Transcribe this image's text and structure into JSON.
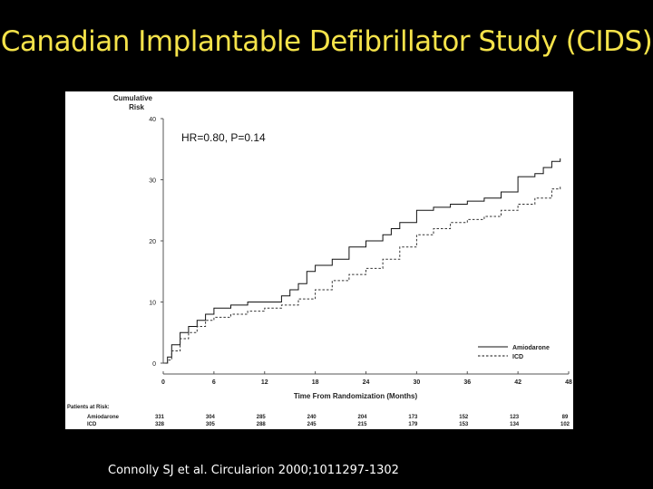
{
  "slide": {
    "title": "Canadian Implantable Defibrillator Study (CIDS)",
    "citation": "Connolly SJ et al. Circularion 2000;1011297-1302"
  },
  "chart_data": {
    "type": "line",
    "annotation": "HR=0.80, P=0.14",
    "ylabel": "Cumulative Risk",
    "xlabel": "Time From Randomization (Months)",
    "xlim": [
      0,
      48
    ],
    "ylim": [
      0,
      40
    ],
    "x_ticks": [
      0,
      6,
      12,
      18,
      24,
      30,
      36,
      42,
      48
    ],
    "y_ticks": [
      0,
      10,
      20,
      30,
      40
    ],
    "legend_position": "bottom-right",
    "series": [
      {
        "name": "Amiodarone",
        "style": "solid",
        "x": [
          0,
          0.5,
          1,
          2,
          3,
          4,
          5,
          6,
          8,
          10,
          12,
          14,
          15,
          16,
          17,
          18,
          20,
          22,
          24,
          26,
          27,
          28,
          30,
          32,
          34,
          36,
          38,
          40,
          42,
          44,
          45,
          46,
          47
        ],
        "y": [
          0,
          1,
          3,
          5,
          6,
          7,
          8,
          9,
          9.5,
          10,
          10,
          11,
          12,
          13,
          15,
          16,
          17,
          19,
          20,
          21,
          22,
          23,
          25,
          25.5,
          26,
          26.5,
          27,
          28,
          30.5,
          31,
          32,
          33,
          33.5
        ]
      },
      {
        "name": "ICD",
        "style": "dashed",
        "x": [
          0,
          0.5,
          1,
          2,
          3,
          4,
          5,
          6,
          8,
          10,
          12,
          14,
          16,
          18,
          20,
          22,
          24,
          26,
          28,
          30,
          32,
          34,
          36,
          38,
          40,
          42,
          44,
          46,
          47
        ],
        "y": [
          0,
          0.5,
          2,
          4,
          5,
          6,
          7,
          7.5,
          8,
          8.5,
          9,
          9.5,
          10.5,
          12,
          13.5,
          14.5,
          15.5,
          17,
          19,
          21,
          22,
          23,
          23.5,
          24,
          25,
          26,
          27,
          28.5,
          29
        ]
      }
    ],
    "at_risk": {
      "header": "Patients at Risk:",
      "x": [
        0,
        6,
        12,
        18,
        24,
        30,
        36,
        42,
        48
      ],
      "rows": [
        {
          "name": "Amiodarone",
          "values": [
            "331",
            "304",
            "285",
            "240",
            "204",
            "173",
            "152",
            "123",
            "89"
          ]
        },
        {
          "name": "ICD",
          "values": [
            "328",
            "305",
            "288",
            "245",
            "215",
            "179",
            "153",
            "134",
            "102"
          ]
        }
      ]
    }
  }
}
